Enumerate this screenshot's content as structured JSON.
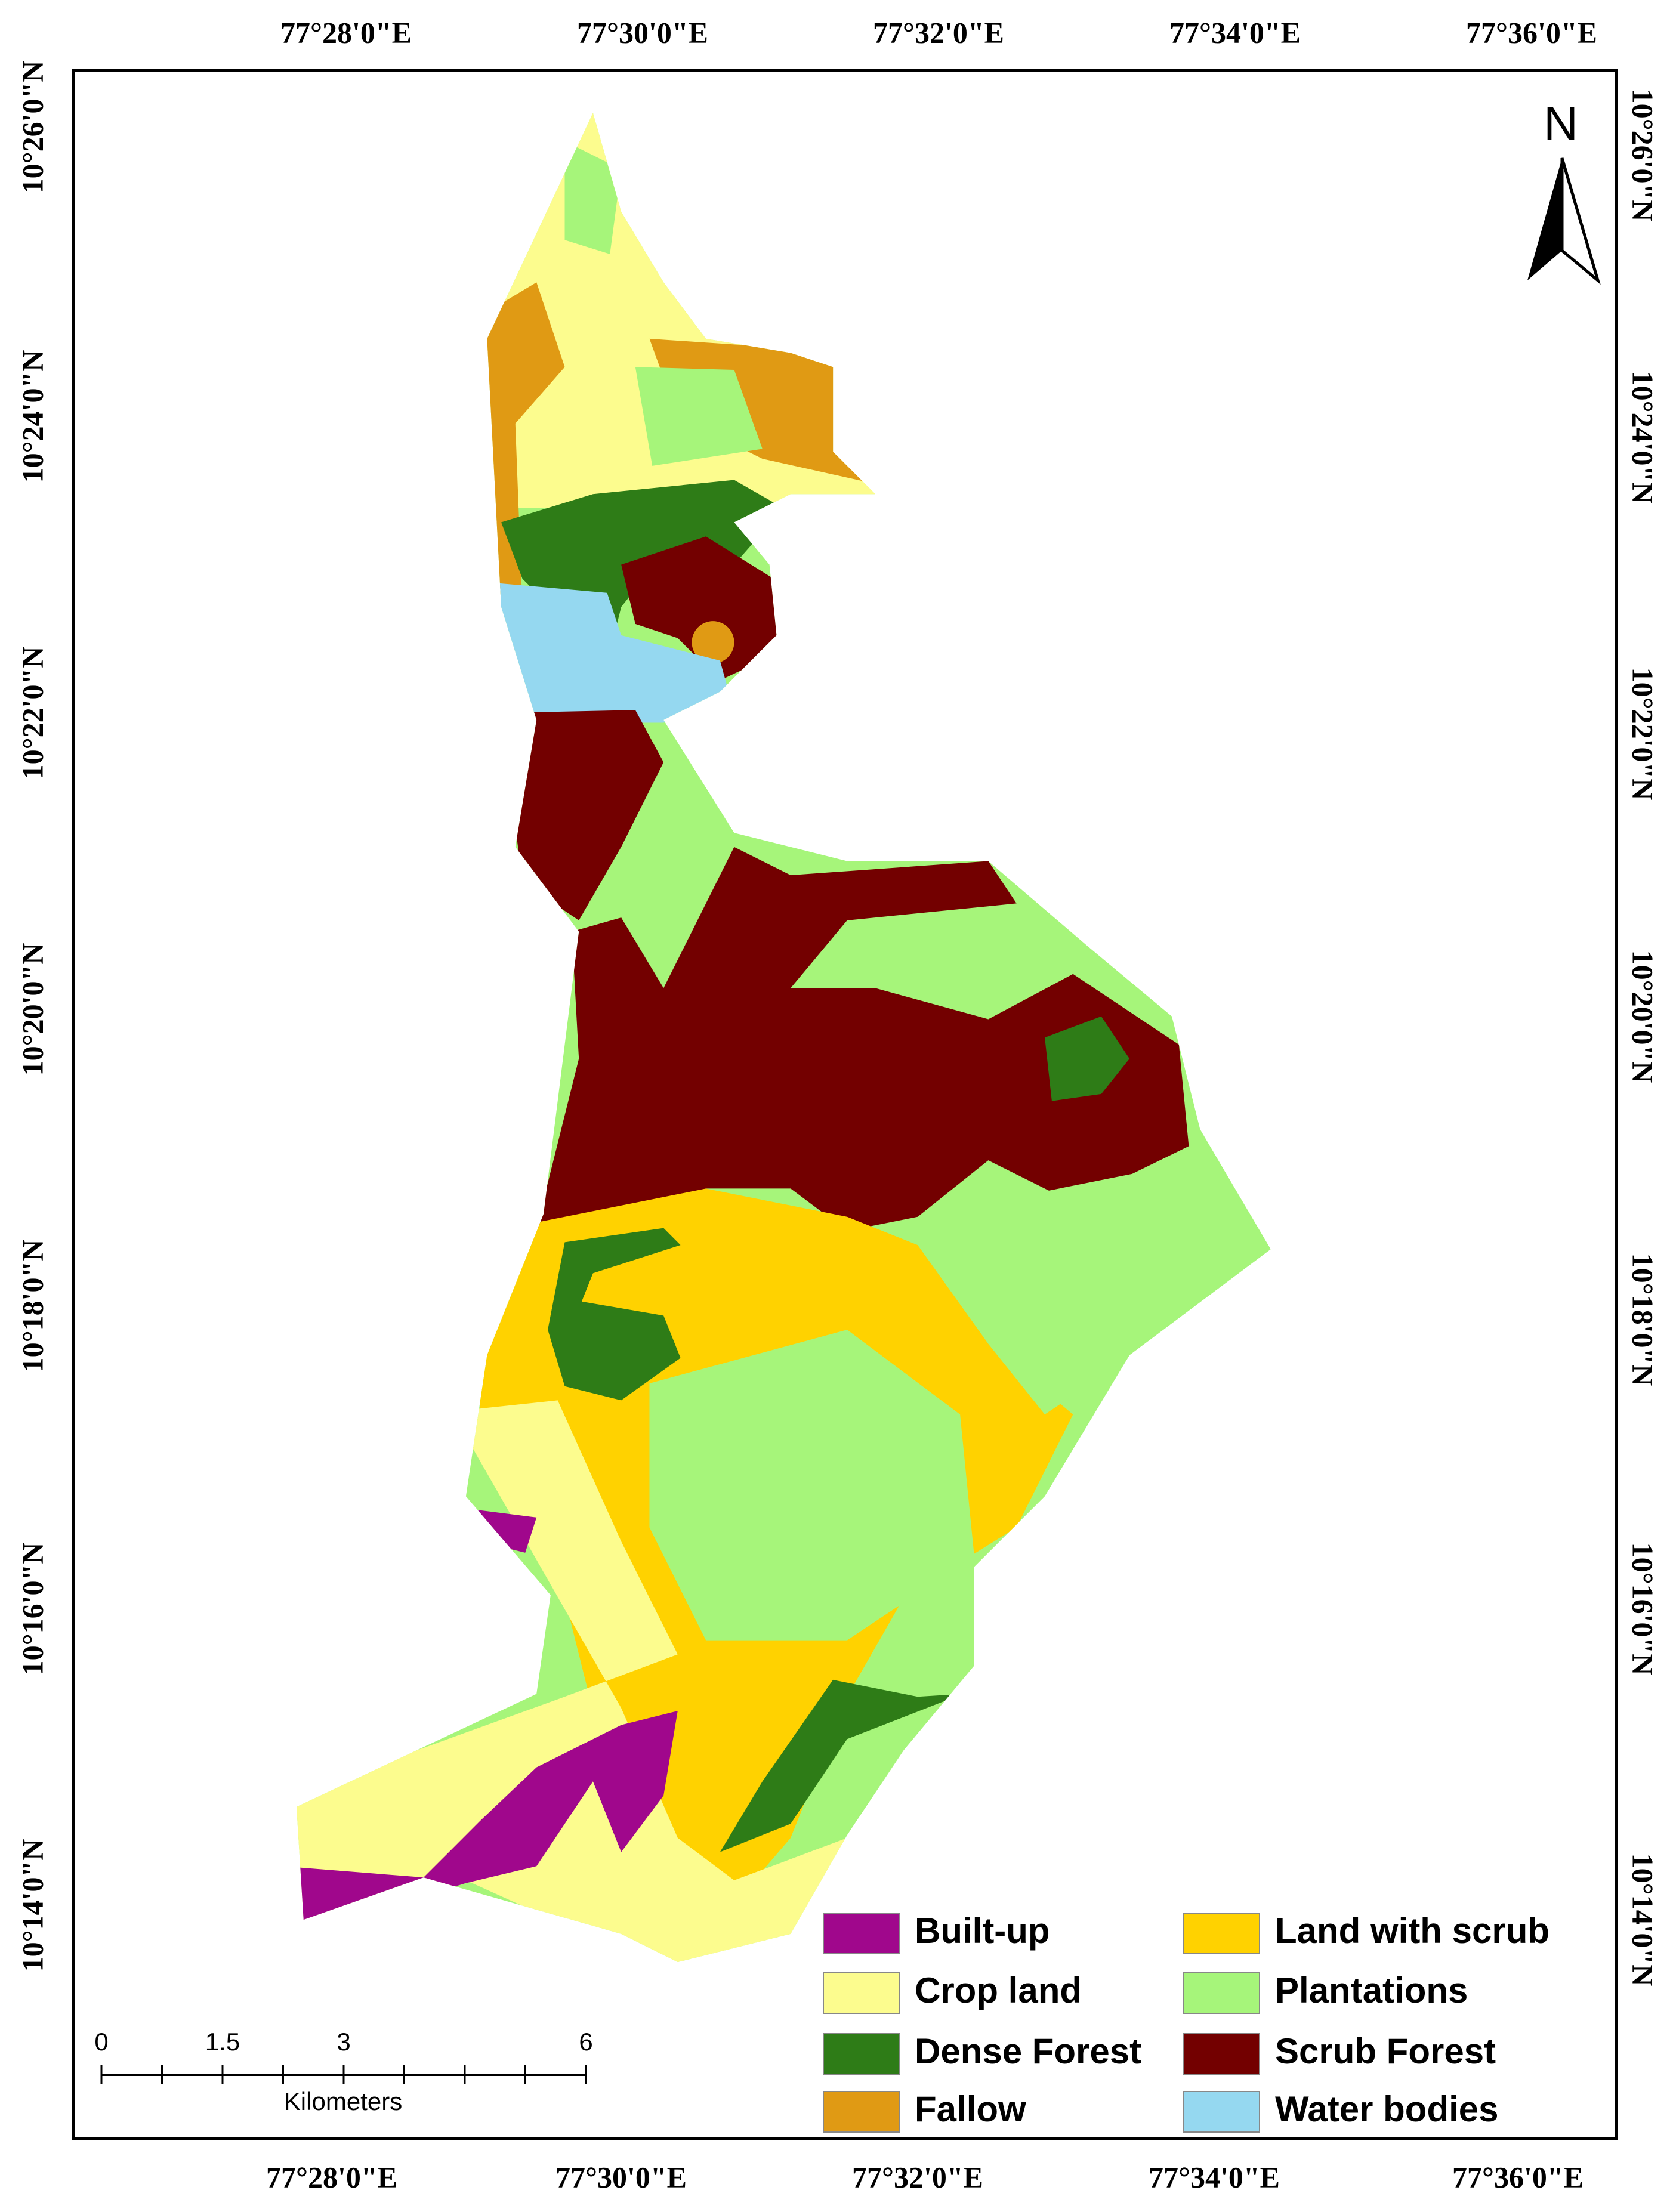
{
  "map": {
    "top_longitudes": [
      "77°28'0\"E",
      "77°30'0\"E",
      "77°32'0\"E",
      "77°34'0\"E",
      "77°36'0\"E"
    ],
    "bottom_longitudes": [
      "77°28'0\"E",
      "77°30'0\"E",
      "77°32'0\"E",
      "77°34'0\"E",
      "77°36'0\"E"
    ],
    "left_latitudes": [
      "10°26'0\"N",
      "10°24'0\"N",
      "10°22'0\"N",
      "10°20'0\"N",
      "10°18'0\"N",
      "10°16'0\"N",
      "10°14'0\"N"
    ],
    "right_latitudes": [
      "10°26'0\"N",
      "10°24'0\"N",
      "10°22'0\"N",
      "10°20'0\"N",
      "10°18'0\"N",
      "10°16'0\"N",
      "10°14'0\"N"
    ],
    "north_arrow": "N",
    "legend": [
      {
        "label": "Built-up",
        "color": "#a0078c"
      },
      {
        "label": "Crop land",
        "color": "#fcfc8e"
      },
      {
        "label": "Dense Forest",
        "color": "#2e7c17"
      },
      {
        "label": "Fallow",
        "color": "#e09a14"
      },
      {
        "label": "Land with scrub",
        "color": "#ffd200"
      },
      {
        "label": "Plantations",
        "color": "#a6f57a"
      },
      {
        "label": "Scrub Forest",
        "color": "#730000"
      },
      {
        "label": "Water bodies",
        "color": "#95d8f0"
      }
    ],
    "scale_bar": {
      "ticks": [
        0,
        1.5,
        3,
        6
      ],
      "unit": "Kilometers"
    }
  }
}
